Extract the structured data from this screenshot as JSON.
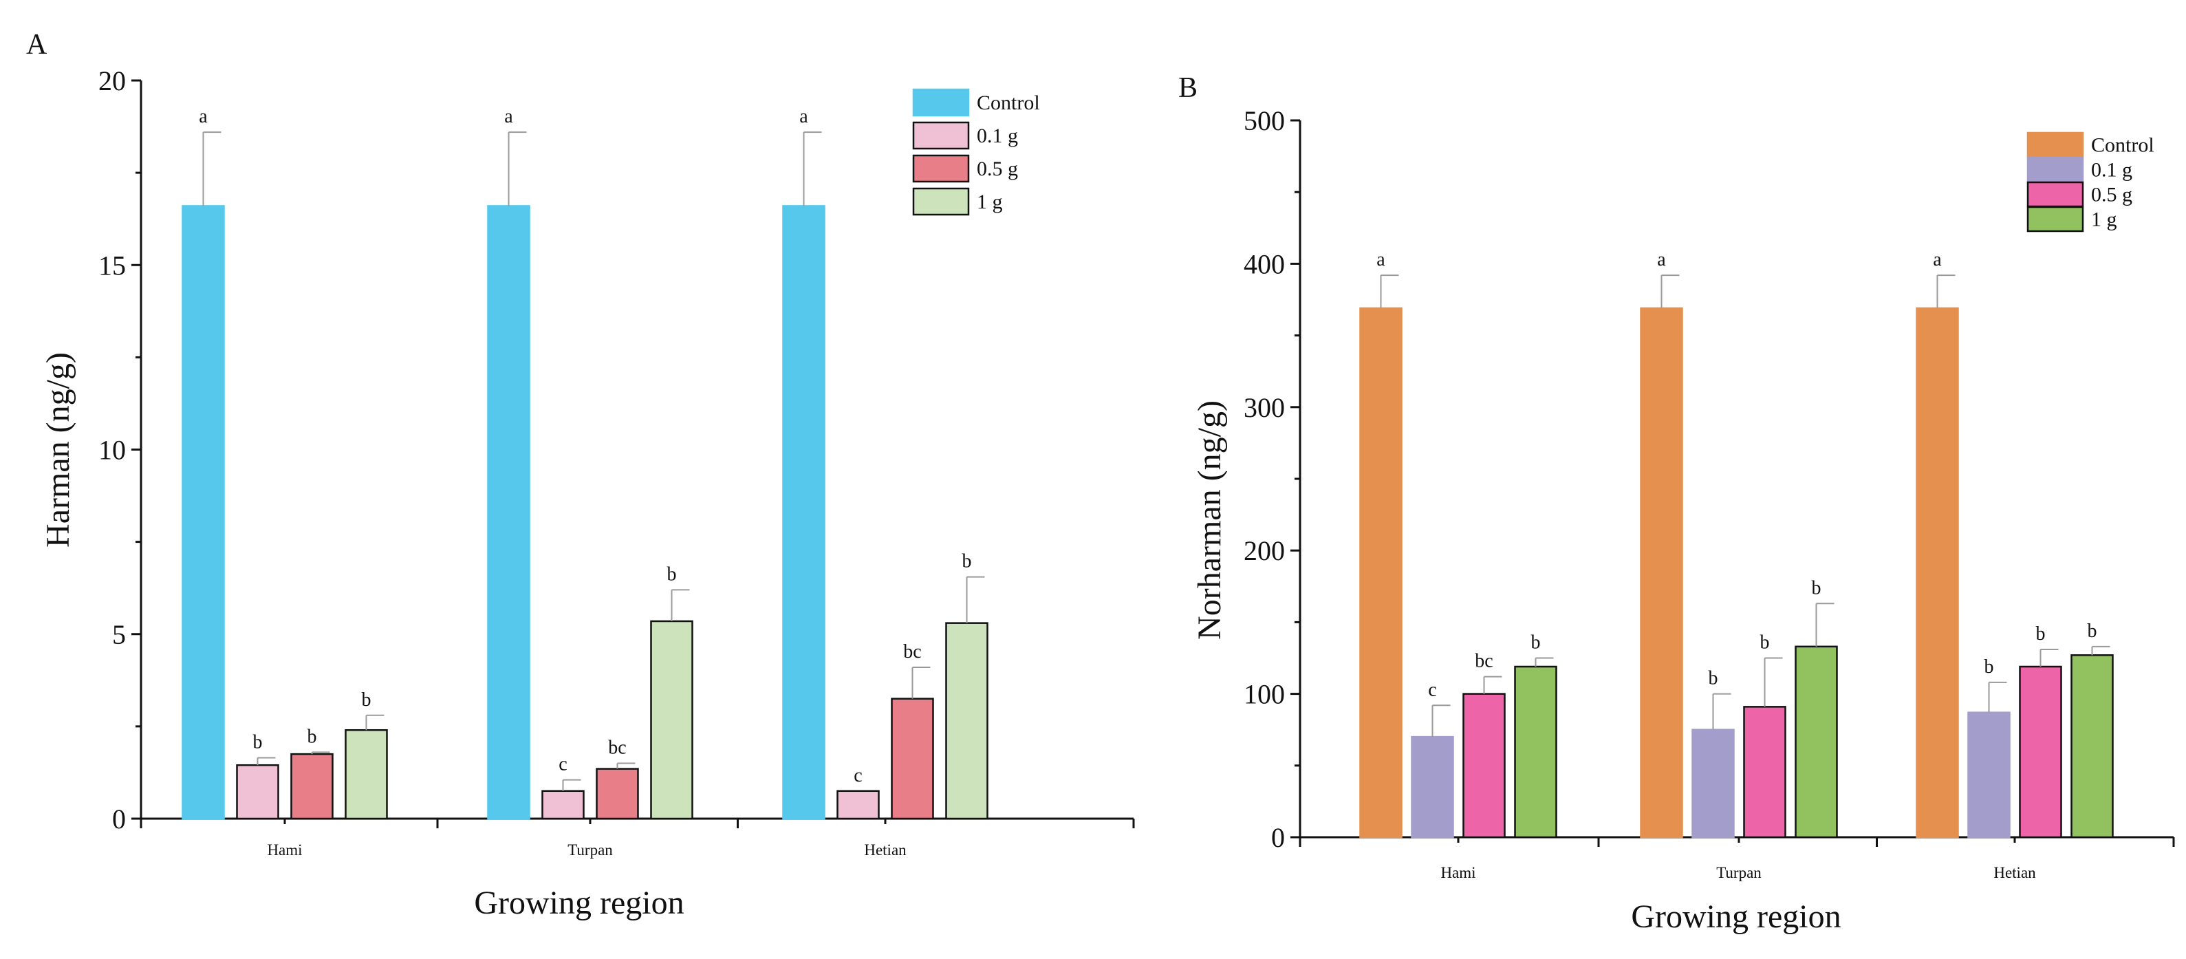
{
  "chart_data": [
    {
      "panel": "A",
      "type": "bar",
      "xlabel": "Growing region",
      "ylabel": "Harman (ng/g)",
      "ylim": [
        0,
        20
      ],
      "yticks": [
        0,
        5,
        10,
        15,
        20
      ],
      "categories": [
        "Hami",
        "Turpan",
        "Hetian"
      ],
      "legend_position": "top-right",
      "series": [
        {
          "name": "Control",
          "color": "#55c8ec",
          "stroke": "#55c8ec",
          "values": [
            16.6,
            16.6,
            16.6
          ],
          "errors": [
            2.0,
            2.0,
            2.0
          ],
          "labels": [
            "a",
            "a",
            "a"
          ]
        },
        {
          "name": "0.1 g",
          "color": "#f0c0d4",
          "stroke": "#111111",
          "values": [
            1.45,
            0.75,
            0.75
          ],
          "errors": [
            0.2,
            0.3,
            0.0
          ],
          "labels": [
            "b",
            "c",
            "c"
          ]
        },
        {
          "name": "0.5 g",
          "color": "#e87f88",
          "stroke": "#111111",
          "values": [
            1.75,
            1.35,
            3.25
          ],
          "errors": [
            0.05,
            0.15,
            0.85
          ],
          "labels": [
            "b",
            "bc",
            "bc"
          ]
        },
        {
          "name": "1 g",
          "color": "#cde3bc",
          "stroke": "#111111",
          "values": [
            2.4,
            5.35,
            5.3
          ],
          "errors": [
            0.4,
            0.85,
            1.25
          ],
          "labels": [
            "b",
            "b",
            "b"
          ]
        }
      ]
    },
    {
      "panel": "B",
      "type": "bar",
      "xlabel": "Growing region",
      "ylabel": "Norharman (ng/g)",
      "ylim": [
        0,
        500
      ],
      "yticks": [
        0,
        100,
        200,
        300,
        400,
        500
      ],
      "categories": [
        "Hami",
        "Turpan",
        "Hetian"
      ],
      "legend_position": "top-right",
      "series": [
        {
          "name": "Control",
          "color": "#e5904f",
          "stroke": "#e5904f",
          "values": [
            369,
            369,
            369
          ],
          "errors": [
            23,
            23,
            23
          ],
          "labels": [
            "a",
            "a",
            "a"
          ]
        },
        {
          "name": "0.1 g",
          "color": "#a39dcb",
          "stroke": "#a39dcb",
          "values": [
            70,
            75,
            87
          ],
          "errors": [
            22,
            25,
            21
          ],
          "labels": [
            "c",
            "b",
            "b"
          ]
        },
        {
          "name": "0.5 g",
          "color": "#ee64a8",
          "stroke": "#111111",
          "values": [
            100,
            91,
            119
          ],
          "errors": [
            12,
            34,
            12
          ],
          "labels": [
            "bc",
            "b",
            "b"
          ]
        },
        {
          "name": "1 g",
          "color": "#92c160",
          "stroke": "#111111",
          "values": [
            119,
            133,
            127
          ],
          "errors": [
            6,
            30,
            6
          ],
          "labels": [
            "b",
            "b",
            "b"
          ]
        }
      ]
    }
  ]
}
